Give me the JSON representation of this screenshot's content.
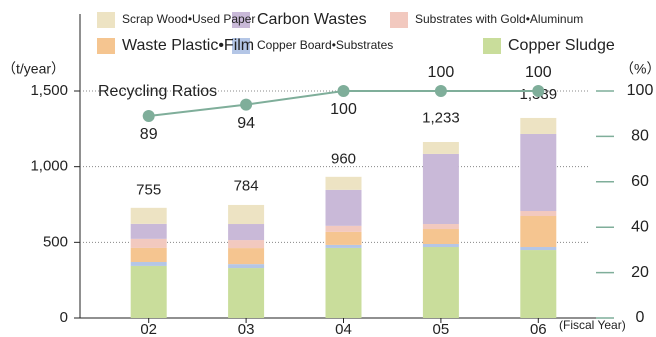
{
  "chart_data": {
    "type": "bar",
    "y_label": "（t/year）",
    "y2_label": "（%）",
    "x_label": "(Fiscal Year)",
    "categories": [
      "02",
      "03",
      "04",
      "05",
      "06"
    ],
    "series": [
      {
        "name": "Copper Sludge",
        "color": "#c9dd9b",
        "values": [
          344,
          330,
          463,
          469,
          449
        ]
      },
      {
        "name": "Copper Board•Substrates",
        "color": "#b4c6e6",
        "values": [
          26,
          26,
          20,
          20,
          20
        ]
      },
      {
        "name": "Waste Plastic•Film",
        "color": "#f5c590",
        "values": [
          93,
          106,
          86,
          99,
          205
        ]
      },
      {
        "name": "Substrates with Gold•Aluminum",
        "color": "#f2c9bf",
        "values": [
          60,
          53,
          40,
          33,
          33
        ]
      },
      {
        "name": "Carbon Wastes",
        "color": "#c9b9d8",
        "values": [
          99,
          106,
          238,
          463,
          509
        ]
      },
      {
        "name": "Scrap Wood•Used Paper",
        "color": "#ede3c3",
        "values": [
          106,
          126,
          86,
          79,
          106
        ]
      }
    ],
    "totals": {
      "values": [
        755,
        784,
        960,
        1233,
        1389
      ],
      "value_labels": [
        "755",
        "784",
        "960",
        "1,233",
        "1,389"
      ]
    },
    "line_series": {
      "name": "Recycling Ratios",
      "color": "#7fae9a",
      "axis": "y2",
      "values": [
        89,
        94,
        100,
        100,
        100
      ]
    },
    "ylim": [
      0,
      1500
    ],
    "yticks": [
      0,
      500,
      {
        "value": 1000,
        "label": "1,000"
      },
      {
        "value": 1500,
        "label": "1,500"
      }
    ],
    "y2lim": [
      0,
      100
    ],
    "y2ticks": [
      0,
      20,
      40,
      60,
      80,
      100
    ],
    "grid": true
  }
}
